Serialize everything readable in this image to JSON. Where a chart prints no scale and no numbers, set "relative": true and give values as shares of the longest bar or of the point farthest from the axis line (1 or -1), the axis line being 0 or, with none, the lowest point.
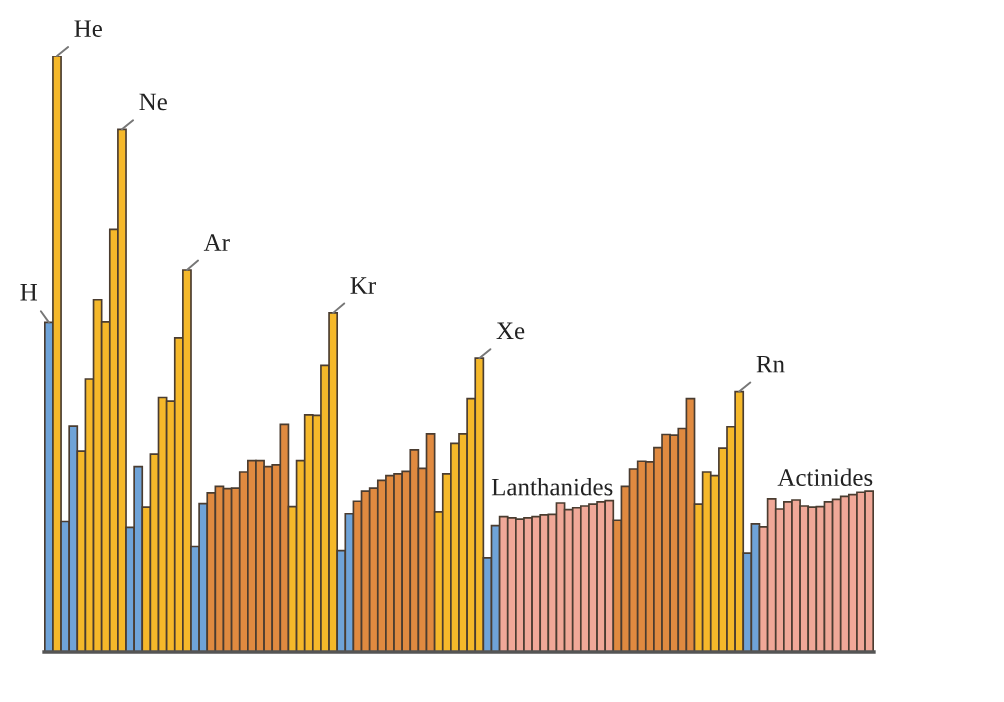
{
  "chart_data": {
    "type": "bar",
    "relative": true,
    "categories": [
      null,
      null,
      null,
      null,
      null,
      null,
      null,
      null,
      null,
      null,
      null,
      null,
      null,
      null,
      null,
      null,
      null,
      null,
      null,
      null,
      null,
      null,
      null,
      null,
      null,
      null,
      null,
      null,
      null,
      null,
      null,
      null,
      null,
      null,
      null,
      null,
      null,
      null,
      null,
      null,
      null,
      null,
      null,
      null,
      null,
      null,
      null,
      null,
      null,
      null,
      null,
      null,
      null,
      null,
      null,
      null,
      null,
      null,
      null,
      null,
      null,
      null,
      null,
      null,
      null,
      null,
      null,
      null,
      null,
      null,
      null,
      null,
      null,
      null,
      null,
      null,
      null,
      null,
      null,
      null,
      null,
      null,
      null,
      null,
      null,
      null,
      null,
      null,
      null,
      null,
      null,
      null,
      null,
      null,
      null,
      null,
      null,
      null,
      null,
      null,
      null,
      null
    ],
    "values": [
      0.553,
      1,
      0.219,
      0.379,
      0.337,
      0.458,
      0.591,
      0.554,
      0.709,
      0.877,
      0.209,
      0.311,
      0.243,
      0.332,
      0.427,
      0.421,
      0.527,
      0.641,
      0.177,
      0.249,
      0.267,
      0.278,
      0.274,
      0.275,
      0.302,
      0.321,
      0.321,
      0.311,
      0.314,
      0.382,
      0.244,
      0.321,
      0.398,
      0.397,
      0.481,
      0.569,
      0.17,
      0.232,
      0.253,
      0.27,
      0.275,
      0.288,
      0.296,
      0.299,
      0.303,
      0.339,
      0.308,
      0.366,
      0.235,
      0.299,
      0.35,
      0.366,
      0.425,
      0.493,
      0.158,
      0.212,
      0.227,
      0.225,
      0.223,
      0.225,
      0.227,
      0.23,
      0.231,
      0.25,
      0.239,
      0.242,
      0.245,
      0.248,
      0.252,
      0.254,
      0.221,
      0.278,
      0.307,
      0.32,
      0.319,
      0.343,
      0.365,
      0.364,
      0.375,
      0.425,
      0.248,
      0.302,
      0.296,
      0.342,
      0.378,
      0.437,
      0.166,
      0.215,
      0.21,
      0.257,
      0.24,
      0.252,
      0.255,
      0.245,
      0.243,
      0.244,
      0.252,
      0.256,
      0.261,
      0.264,
      0.268,
      0.27
    ],
    "colors": [
      "#6fa3d8",
      "#f5b82a",
      "#6fa3d8",
      "#6fa3d8",
      "#f5b82a",
      "#f5b82a",
      "#f5b82a",
      "#f5b82a",
      "#f5b82a",
      "#f5b82a",
      "#6fa3d8",
      "#6fa3d8",
      "#f5b82a",
      "#f5b82a",
      "#f5b82a",
      "#f5b82a",
      "#f5b82a",
      "#f5b82a",
      "#6fa3d8",
      "#6fa3d8",
      "#e08a40",
      "#e08a40",
      "#e08a40",
      "#e08a40",
      "#e08a40",
      "#e08a40",
      "#e08a40",
      "#e08a40",
      "#e08a40",
      "#e08a40",
      "#f5b82a",
      "#f5b82a",
      "#f5b82a",
      "#f5b82a",
      "#f5b82a",
      "#f5b82a",
      "#6fa3d8",
      "#6fa3d8",
      "#e08a40",
      "#e08a40",
      "#e08a40",
      "#e08a40",
      "#e08a40",
      "#e08a40",
      "#e08a40",
      "#e08a40",
      "#e08a40",
      "#e08a40",
      "#f5b82a",
      "#f5b82a",
      "#f5b82a",
      "#f5b82a",
      "#f5b82a",
      "#f5b82a",
      "#6fa3d8",
      "#6fa3d8",
      "#f0a898",
      "#f0a898",
      "#f0a898",
      "#f0a898",
      "#f0a898",
      "#f0a898",
      "#f0a898",
      "#f0a898",
      "#f0a898",
      "#f0a898",
      "#f0a898",
      "#f0a898",
      "#f0a898",
      "#f0a898",
      "#e08a40",
      "#e08a40",
      "#e08a40",
      "#e08a40",
      "#e08a40",
      "#e08a40",
      "#e08a40",
      "#e08a40",
      "#e08a40",
      "#e08a40",
      "#f5b82a",
      "#f5b82a",
      "#f5b82a",
      "#f5b82a",
      "#f5b82a",
      "#f5b82a",
      "#6fa3d8",
      "#6fa3d8",
      "#f0a898",
      "#f0a898",
      "#f0a898",
      "#f0a898",
      "#f0a898",
      "#f0a898",
      "#f0a898",
      "#f0a898",
      "#f0a898",
      "#f0a898",
      "#f0a898",
      "#f0a898",
      "#f0a898",
      "#f0a898"
    ],
    "annotations": [
      "H",
      "He",
      "Ne",
      "Ar",
      "Kr",
      "Xe",
      "Rn",
      "Lanthanides",
      "Actinides"
    ],
    "grid": false,
    "legend": false
  }
}
